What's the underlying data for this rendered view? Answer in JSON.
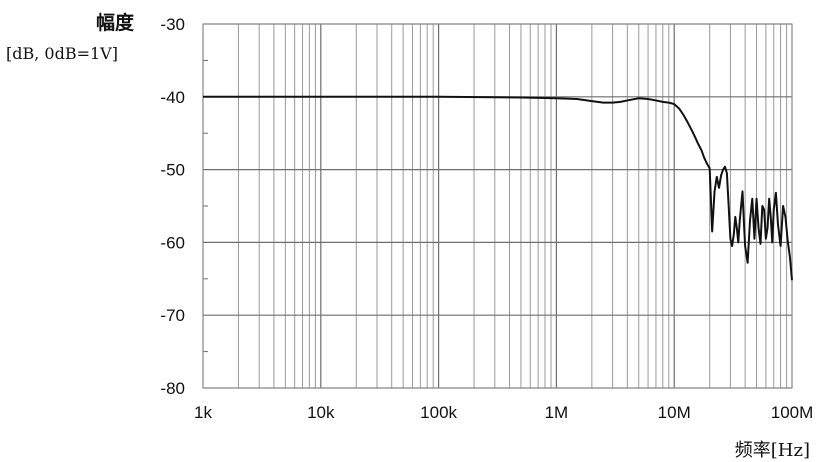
{
  "chart_data": {
    "type": "line",
    "title": "",
    "ylabel": "幅度",
    "ylabel_unit": "[dB, 0dB=1V]",
    "xlabel": "频率[Hz]",
    "x_scale": "log",
    "xlim": [
      1000,
      100000000
    ],
    "ylim": [
      -80,
      -30
    ],
    "grid": true,
    "x_ticks": [
      {
        "value": 1000,
        "label": "1k"
      },
      {
        "value": 10000,
        "label": "10k"
      },
      {
        "value": 100000,
        "label": "100k"
      },
      {
        "value": 1000000,
        "label": "1M"
      },
      {
        "value": 10000000,
        "label": "10M"
      },
      {
        "value": 100000000,
        "label": "100M"
      }
    ],
    "y_ticks": [
      {
        "value": -30,
        "label": "-30"
      },
      {
        "value": -40,
        "label": "-40"
      },
      {
        "value": -50,
        "label": "-50"
      },
      {
        "value": -60,
        "label": "-60"
      },
      {
        "value": -70,
        "label": "-70"
      },
      {
        "value": -80,
        "label": "-80"
      }
    ],
    "series": [
      {
        "color": "#111111",
        "x": [
          1000,
          10000,
          100000,
          500000,
          1000000,
          1500000,
          2000000,
          2500000,
          3000000,
          3500000,
          4000000,
          5000000,
          6000000,
          7000000,
          8000000,
          9000000,
          10000000,
          11000000,
          12000000,
          13000000,
          14000000,
          15000000,
          16000000,
          17000000,
          18000000,
          19000000,
          20000000,
          21000000,
          22000000,
          23000000,
          24000000,
          25000000,
          26000000,
          27000000,
          28000000,
          29000000,
          30000000,
          31000000,
          32000000,
          33000000,
          34000000,
          35000000,
          36000000,
          37000000,
          38000000,
          39000000,
          40000000,
          42000000,
          44000000,
          46000000,
          48000000,
          50000000,
          52000000,
          54000000,
          56000000,
          58000000,
          60000000,
          62000000,
          64000000,
          66000000,
          68000000,
          70000000,
          73000000,
          76000000,
          80000000,
          84000000,
          88000000,
          92000000,
          96000000,
          100000000
        ],
        "y": [
          -40,
          -40,
          -40,
          -40.1,
          -40.2,
          -40.3,
          -40.6,
          -40.8,
          -40.8,
          -40.7,
          -40.5,
          -40.2,
          -40.3,
          -40.5,
          -40.7,
          -40.8,
          -41,
          -41.6,
          -42.5,
          -43.5,
          -44.5,
          -45.5,
          -46.5,
          -47.3,
          -48.4,
          -49.2,
          -49.8,
          -58.5,
          -53,
          -51,
          -52.5,
          -50.8,
          -50,
          -49.6,
          -50.5,
          -55,
          -59.5,
          -60.5,
          -59,
          -56.5,
          -58,
          -60,
          -57,
          -55,
          -53,
          -57,
          -60.5,
          -62.8,
          -57,
          -54,
          -59.5,
          -54,
          -58,
          -60.2,
          -55,
          -55.5,
          -59.5,
          -58,
          -54,
          -56.5,
          -60,
          -55.5,
          -53.2,
          -57.5,
          -60.5,
          -55,
          -56.5,
          -59.8,
          -62,
          -65.2
        ]
      }
    ]
  }
}
